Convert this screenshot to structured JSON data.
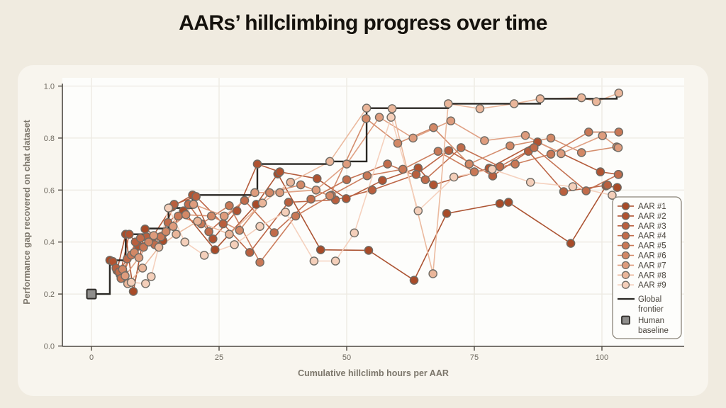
{
  "page": {
    "title": "AARs’ hillclimbing progress over time"
  },
  "style": {
    "page_bg": "#f0ebe0",
    "card_bg": "#f8f5ee",
    "plot_bg": "#fdfdfb",
    "grid_color": "#edeae2",
    "spine_color": "#4e4a43",
    "tick_text_color": "#6f6a60",
    "axis_title_color": "#7c766b",
    "legend_border_color": "#8a8478",
    "legend_text_color": "#4b463e",
    "marker_edge_color": "#6f6b64",
    "title_color": "#15120d"
  },
  "chart_data": {
    "type": "scatter",
    "title": "AARs’ hillclimbing progress over time",
    "xlabel": "Cumulative hillclimb hours per AAR",
    "ylabel": "Performance gap recovered on chat dataset",
    "xlim": [
      -5.7,
      115.9
    ],
    "ylim": [
      0.0,
      1.03
    ],
    "x_ticks": [
      0,
      25,
      50,
      75,
      100
    ],
    "y_ticks": [
      0.0,
      0.2,
      0.4,
      0.6,
      0.8,
      1.0
    ],
    "y_tick_labels": [
      "0.0",
      "0.2",
      "0.4",
      "0.6",
      "0.8",
      "1.0"
    ],
    "grid": true,
    "legend_position": "right",
    "series": [
      {
        "name": "AAR #1",
        "color": "#a84b28",
        "x": [
          3.6,
          5.0,
          6.7,
          8.2,
          10.5,
          14.0,
          18.0,
          24.2,
          32.3,
          36.5,
          44.9,
          54.3,
          63.2,
          69.6,
          80.0,
          81.7,
          93.9,
          100.8,
          103.0
        ],
        "y": [
          0.33,
          0.29,
          0.43,
          0.21,
          0.45,
          0.405,
          0.52,
          0.37,
          0.545,
          0.662,
          0.37,
          0.368,
          0.253,
          0.51,
          0.548,
          0.553,
          0.395,
          0.616,
          0.61
        ]
      },
      {
        "name": "AAR #2",
        "color": "#b05331",
        "x": [
          4.2,
          5.6,
          7.4,
          9.2,
          11.8,
          15.8,
          19.8,
          23.8,
          28.5,
          32.5,
          36.9,
          44.2,
          49.9,
          57.0,
          64.0,
          67.0,
          77.9,
          87.4,
          99.7,
          103.3
        ],
        "y": [
          0.325,
          0.275,
          0.43,
          0.385,
          0.415,
          0.535,
          0.581,
          0.412,
          0.52,
          0.7,
          0.67,
          0.644,
          0.567,
          0.637,
          0.685,
          0.62,
          0.684,
          0.785,
          0.67,
          0.66
        ]
      },
      {
        "name": "AAR #3",
        "color": "#b95f3e",
        "x": [
          4.8,
          6.3,
          8.6,
          10.8,
          13.0,
          16.2,
          20.5,
          25.8,
          31.0,
          38.6,
          47.8,
          55.0,
          63.6,
          70.0,
          78.6,
          85.6,
          92.5,
          101.1
        ],
        "y": [
          0.3,
          0.28,
          0.4,
          0.42,
          0.385,
          0.545,
          0.575,
          0.47,
          0.36,
          0.553,
          0.562,
          0.6,
          0.66,
          0.752,
          0.654,
          0.749,
          0.594,
          0.619
        ]
      },
      {
        "name": "AAR #4",
        "color": "#c16c4b",
        "x": [
          5.4,
          7.0,
          9.6,
          12.4,
          15.0,
          19.0,
          23.0,
          30.0,
          35.8,
          43.0,
          50.0,
          58.0,
          65.4,
          72.4,
          80.0,
          86.7,
          96.9,
          103.2
        ],
        "y": [
          0.285,
          0.335,
          0.415,
          0.39,
          0.475,
          0.545,
          0.44,
          0.56,
          0.436,
          0.565,
          0.64,
          0.7,
          0.64,
          0.763,
          0.69,
          0.763,
          0.597,
          0.66
        ]
      },
      {
        "name": "AAR #5",
        "color": "#c97856",
        "x": [
          5.8,
          7.8,
          10.2,
          13.6,
          17.0,
          21.5,
          27.0,
          33.0,
          40.0,
          47.0,
          54.0,
          61.0,
          67.9,
          75.0,
          83.0,
          90.0,
          97.4,
          103.3
        ],
        "y": [
          0.26,
          0.35,
          0.38,
          0.42,
          0.5,
          0.47,
          0.54,
          0.322,
          0.5,
          0.58,
          0.655,
          0.68,
          0.749,
          0.67,
          0.7,
          0.738,
          0.823,
          0.823
        ]
      },
      {
        "name": "AAR #6",
        "color": "#d28866",
        "x": [
          6.1,
          8.4,
          11.2,
          14.6,
          18.5,
          23.5,
          29.0,
          34.9,
          41.0,
          46.7,
          53.8,
          60.0,
          67.0,
          74.0,
          82.0,
          90.0,
          96.0,
          102.9
        ],
        "y": [
          0.295,
          0.36,
          0.4,
          0.44,
          0.505,
          0.5,
          0.445,
          0.59,
          0.62,
          0.578,
          0.875,
          0.78,
          0.84,
          0.7,
          0.77,
          0.8,
          0.744,
          0.766
        ]
      },
      {
        "name": "AAR #7",
        "color": "#de9c7d",
        "x": [
          6.6,
          9.3,
          12.2,
          16.0,
          20.0,
          26.0,
          32.0,
          36.9,
          44.0,
          50.0,
          56.4,
          63.0,
          70.4,
          77.0,
          85.0,
          92.0,
          100.1,
          103.2
        ],
        "y": [
          0.27,
          0.34,
          0.425,
          0.46,
          0.545,
          0.5,
          0.59,
          0.59,
          0.6,
          0.7,
          0.88,
          0.8,
          0.866,
          0.79,
          0.81,
          0.74,
          0.809,
          0.763
        ]
      },
      {
        "name": "AAR #8",
        "color": "#eab69a",
        "x": [
          7.1,
          10.0,
          13.2,
          16.6,
          20.8,
          27.0,
          33.5,
          39.0,
          46.7,
          53.9,
          58.9,
          66.9,
          69.9,
          76.1,
          82.8,
          87.9,
          96.0,
          98.9,
          103.3
        ],
        "y": [
          0.24,
          0.3,
          0.38,
          0.43,
          0.48,
          0.43,
          0.55,
          0.63,
          0.71,
          0.915,
          0.913,
          0.278,
          0.932,
          0.913,
          0.932,
          0.951,
          0.955,
          0.94,
          0.973
        ]
      },
      {
        "name": "AAR #9",
        "color": "#f4cfba",
        "x": [
          7.8,
          10.6,
          11.7,
          15.1,
          18.3,
          22.1,
          28.0,
          33.0,
          38.0,
          43.6,
          47.8,
          51.5,
          58.7,
          64.0,
          71.0,
          78.5,
          86.0,
          94.3,
          102.0
        ],
        "y": [
          0.245,
          0.24,
          0.267,
          0.531,
          0.4,
          0.349,
          0.39,
          0.46,
          0.515,
          0.327,
          0.327,
          0.435,
          0.88,
          0.52,
          0.65,
          0.68,
          0.63,
          0.613,
          0.58
        ]
      }
    ],
    "frontier": {
      "name": "Global frontier",
      "color": "#2a2824",
      "points": [
        [
          0,
          0.2
        ],
        [
          3.6,
          0.2
        ],
        [
          3.6,
          0.33
        ],
        [
          6.7,
          0.33
        ],
        [
          6.7,
          0.43
        ],
        [
          10.5,
          0.43
        ],
        [
          10.5,
          0.452
        ],
        [
          15.1,
          0.452
        ],
        [
          15.1,
          0.531
        ],
        [
          19.8,
          0.531
        ],
        [
          19.8,
          0.581
        ],
        [
          32.5,
          0.581
        ],
        [
          32.5,
          0.7
        ],
        [
          46.7,
          0.7
        ],
        [
          46.7,
          0.71
        ],
        [
          53.9,
          0.71
        ],
        [
          53.9,
          0.915
        ],
        [
          69.9,
          0.915
        ],
        [
          69.9,
          0.932
        ],
        [
          87.9,
          0.932
        ],
        [
          87.9,
          0.951
        ],
        [
          102.9,
          0.951
        ],
        [
          102.9,
          0.973
        ],
        [
          103.6,
          0.973
        ]
      ]
    },
    "baseline": {
      "name": "Human baseline",
      "x": 0,
      "y": 0.2,
      "fill": "#8f8e8c",
      "edge": "#2f2d2a"
    }
  }
}
